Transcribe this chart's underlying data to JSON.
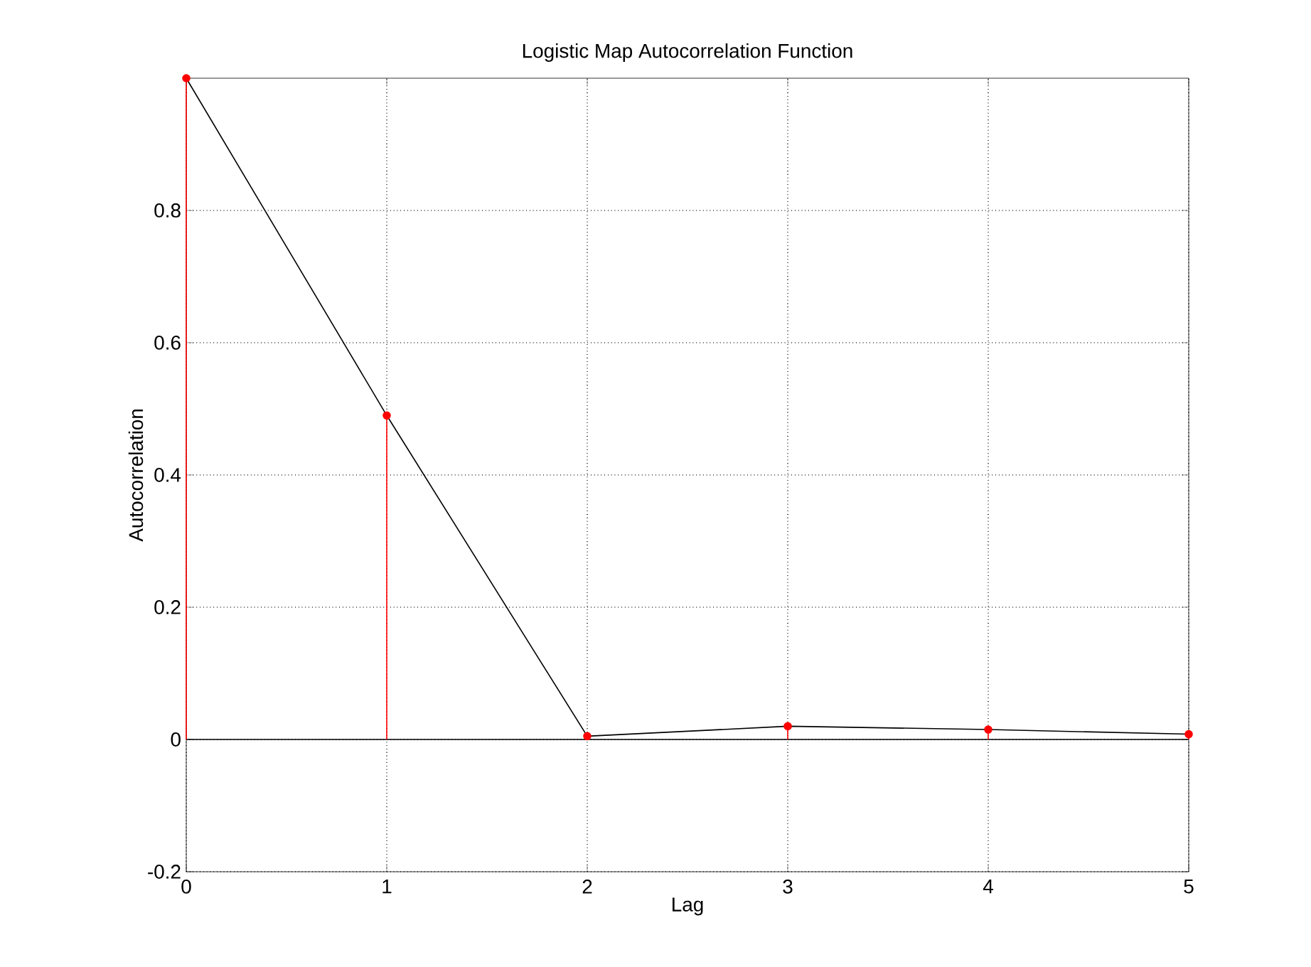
{
  "chart_data": {
    "type": "lollipop",
    "title": "Logistic Map Autocorrelation Function",
    "xlabel": "Lag",
    "ylabel": "Autocorrelation",
    "x": [
      0,
      1,
      2,
      3,
      4,
      5
    ],
    "series": [
      {
        "type": "line",
        "color": "#000000",
        "marker": "none",
        "values": [
          1,
          0.49,
          0.005,
          0.02,
          0.015,
          0.008
        ]
      },
      {
        "color": "#ff0000",
        "marker": "circle",
        "values": [
          1,
          0.49,
          0.005,
          0.02,
          0.015,
          0.008
        ]
      }
    ],
    "xlim": [
      0,
      5
    ],
    "xticks": [
      0,
      1,
      2,
      3,
      4,
      5
    ],
    "ylim": [
      -0.2,
      1
    ],
    "yticks": [
      -0.2,
      0,
      0.2,
      0.4,
      0.6,
      0.8
    ],
    "ref_lines": [
      {
        "axis": "y",
        "value": 0,
        "color": "#000000"
      }
    ],
    "grid": true,
    "line_style": "solid"
  }
}
